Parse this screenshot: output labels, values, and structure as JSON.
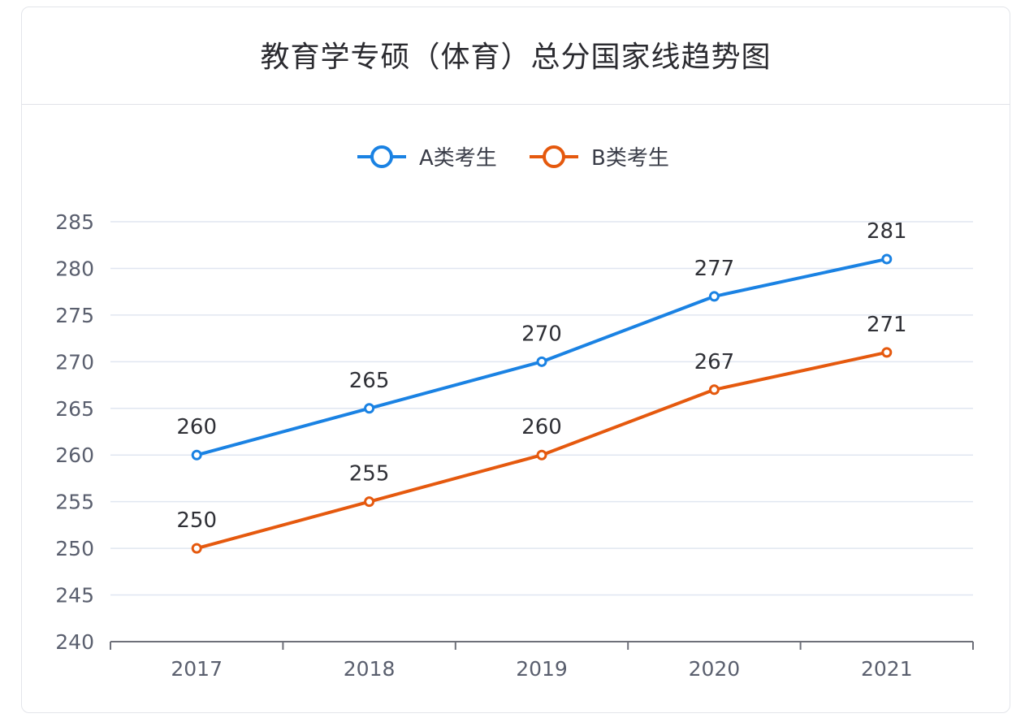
{
  "chart_data": {
    "type": "line",
    "title": "教育学专硕（体育）总分国家线趋势图",
    "categories": [
      "2017",
      "2018",
      "2019",
      "2020",
      "2021"
    ],
    "series": [
      {
        "name": "A类考生",
        "color": "#1a82e3",
        "values": [
          260,
          265,
          270,
          277,
          281
        ]
      },
      {
        "name": "B类考生",
        "color": "#e5590e",
        "values": [
          250,
          255,
          260,
          267,
          271
        ]
      }
    ],
    "ylim": [
      240,
      285
    ],
    "yticks": [
      240,
      245,
      250,
      255,
      260,
      265,
      270,
      275,
      280,
      285
    ],
    "xlabel": "",
    "ylabel": "",
    "grid": true,
    "legend_position": "top-center",
    "data_labels": true
  }
}
